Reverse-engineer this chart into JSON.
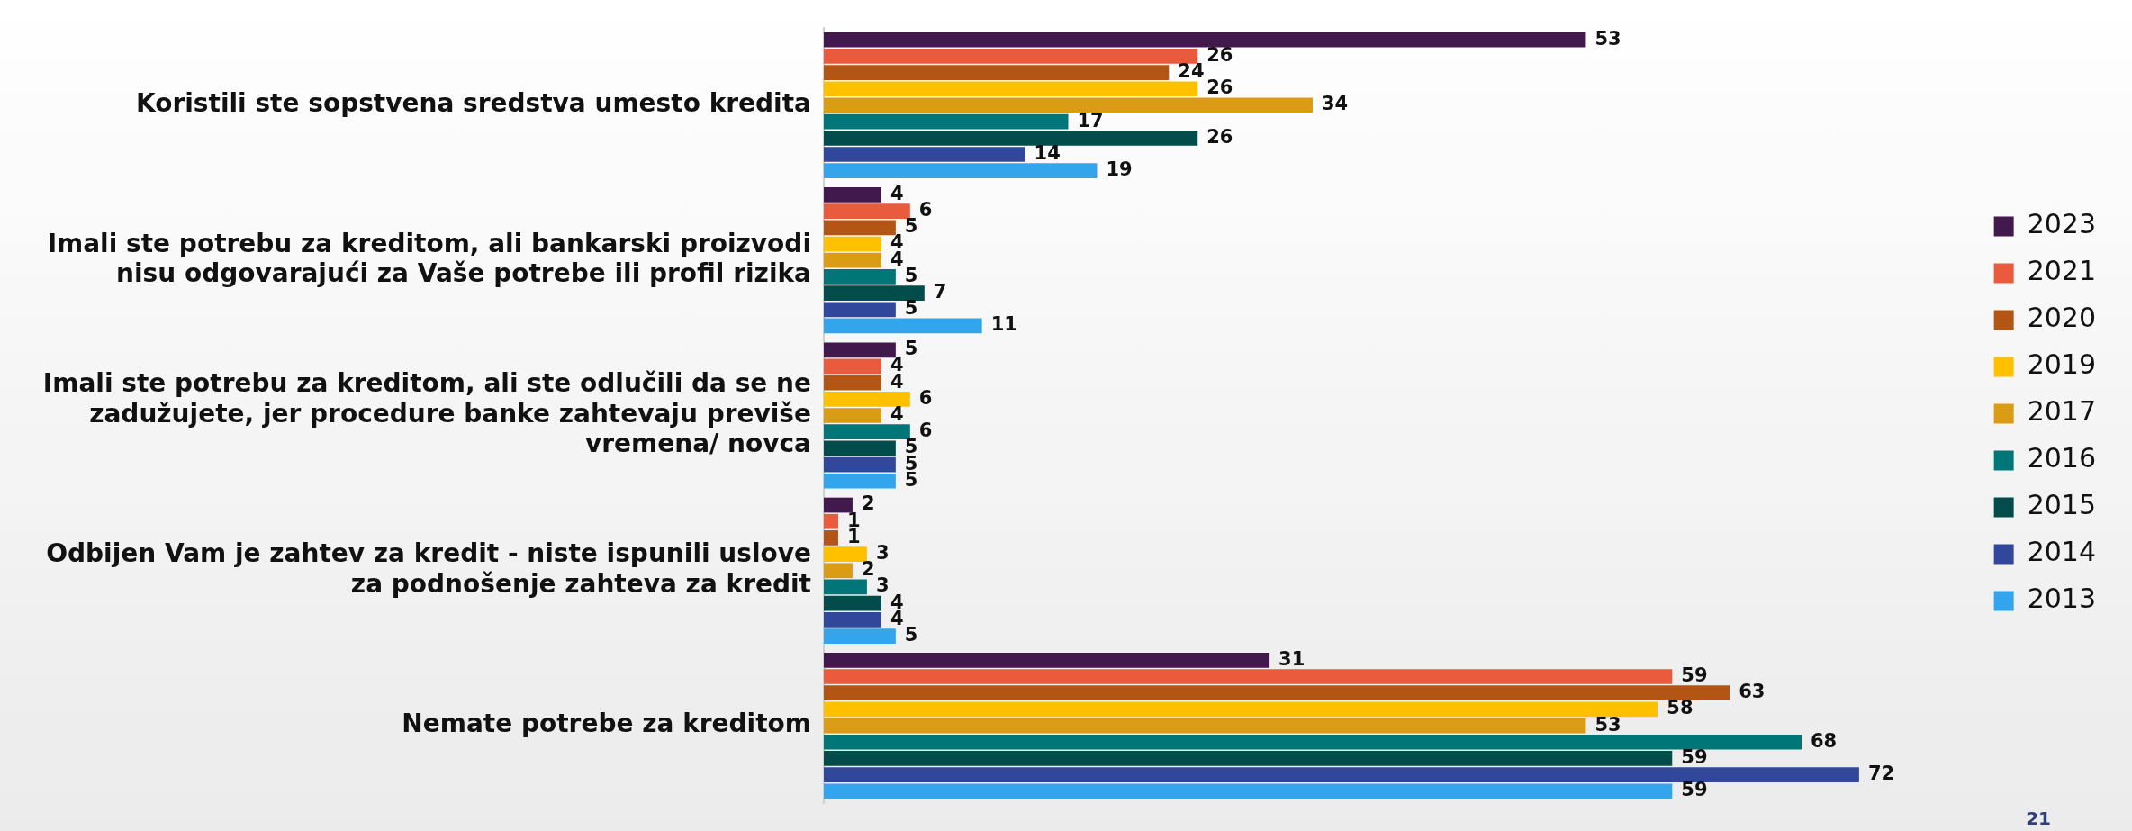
{
  "chart_data": {
    "type": "bar",
    "orientation": "horizontal",
    "categories": [
      "Koristili ste sopstvena sredstva umesto kredita",
      "Imali ste potrebu za kreditom, ali bankarski proizvodi nisu odgovarajući za Vaše potrebe ili profil rizika",
      "Imali ste potrebu za kreditom, ali ste odlučili da se ne zadužujete, jer procedure banke zahtevaju previše vremena/ novca",
      "Odbijen Vam je zahtev za kredit - niste ispunili uslove za podnošenje zahteva za kredit",
      "Nemate potrebe za kreditom"
    ],
    "series": [
      {
        "name": "2023",
        "color": "#42194d",
        "values": [
          53,
          4,
          5,
          2,
          31
        ]
      },
      {
        "name": "2021",
        "color": "#ea5a3d",
        "values": [
          26,
          6,
          4,
          1,
          59
        ]
      },
      {
        "name": "2020",
        "color": "#b35615",
        "values": [
          24,
          5,
          4,
          1,
          63
        ]
      },
      {
        "name": "2019",
        "color": "#ffc000",
        "values": [
          26,
          4,
          6,
          3,
          58
        ]
      },
      {
        "name": "2017",
        "color": "#d99c14",
        "values": [
          34,
          4,
          4,
          2,
          53
        ]
      },
      {
        "name": "2016",
        "color": "#007679",
        "values": [
          17,
          5,
          6,
          3,
          68
        ]
      },
      {
        "name": "2015",
        "color": "#024d4c",
        "values": [
          26,
          7,
          5,
          4,
          59
        ]
      },
      {
        "name": "2014",
        "color": "#30479b",
        "values": [
          14,
          5,
          5,
          4,
          72
        ]
      },
      {
        "name": "2013",
        "color": "#33a5ed",
        "values": [
          19,
          11,
          5,
          5,
          59
        ]
      }
    ],
    "data_labels": true,
    "legend": "right",
    "tick_labels": "y",
    "grid": false,
    "annotations": [
      "21"
    ]
  }
}
